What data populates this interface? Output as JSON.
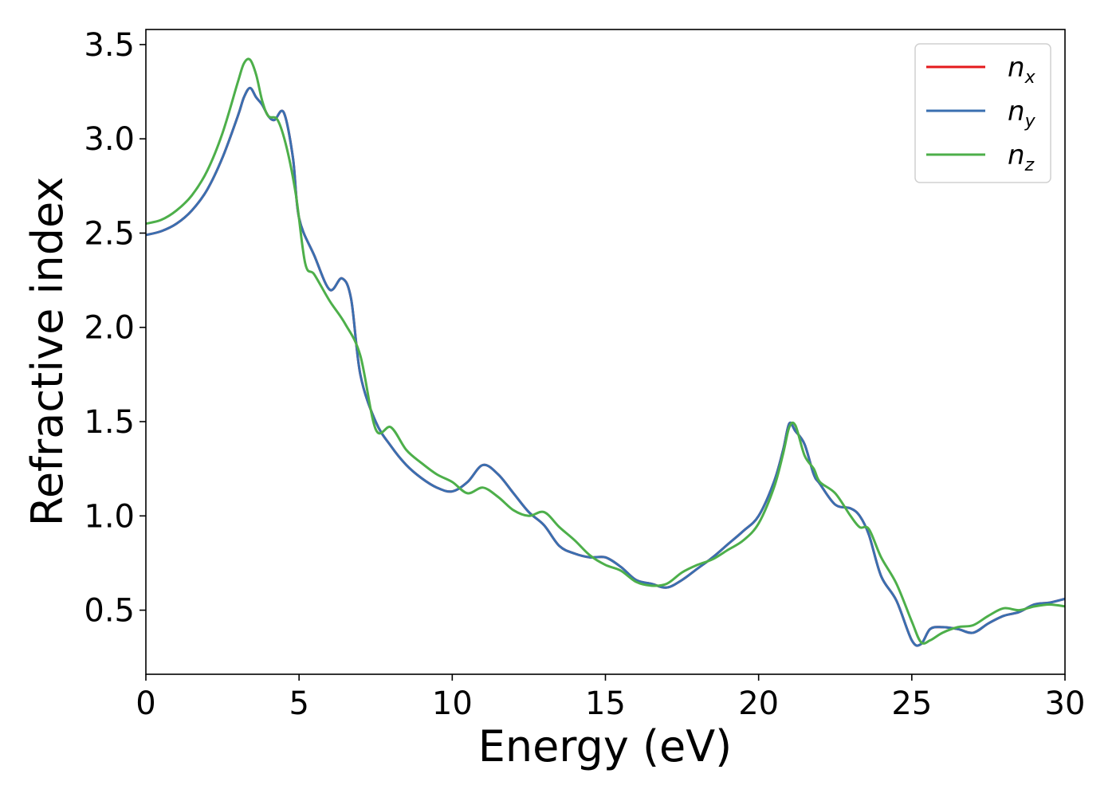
{
  "chart_data": {
    "type": "line",
    "xlabel": "Energy (eV)",
    "ylabel": "Refractive index",
    "xlim": [
      0,
      30
    ],
    "ylim": [
      0.16,
      3.58
    ],
    "xticks": [
      0,
      5,
      10,
      15,
      20,
      25,
      30
    ],
    "yticks": [
      0.5,
      1.0,
      1.5,
      2.0,
      2.5,
      3.0,
      3.5
    ],
    "xtick_labels": [
      "0",
      "5",
      "10",
      "15",
      "20",
      "25",
      "30"
    ],
    "ytick_labels": [
      "0.5",
      "1.0",
      "1.5",
      "2.0",
      "2.5",
      "3.0",
      "3.5"
    ],
    "grid": false,
    "legend_position": "top-right",
    "series": [
      {
        "name": "n_x",
        "label_base": "n",
        "label_sub": "x",
        "color": "#e41a1c",
        "x": [
          0,
          0.5,
          1,
          1.5,
          2,
          2.5,
          3,
          3.2,
          3.4,
          3.6,
          3.8,
          4.0,
          4.2,
          4.5,
          4.8,
          5.0,
          5.5,
          6.0,
          6.4,
          6.7,
          7.0,
          7.5,
          8.0,
          8.5,
          9.0,
          9.5,
          10.0,
          10.5,
          11.0,
          11.5,
          12.0,
          12.5,
          13.0,
          13.5,
          14.0,
          14.5,
          15.0,
          15.5,
          16.0,
          16.5,
          17.0,
          17.5,
          18.0,
          18.5,
          19.0,
          19.5,
          20.0,
          20.5,
          20.8,
          21.0,
          21.2,
          21.5,
          21.8,
          22.0,
          22.5,
          23.0,
          23.3,
          23.6,
          24.0,
          24.5,
          25.0,
          25.3,
          25.6,
          26.0,
          26.5,
          27.0,
          27.5,
          28.0,
          28.5,
          29.0,
          29.5,
          30.0
        ],
        "y": [
          2.49,
          2.51,
          2.55,
          2.62,
          2.73,
          2.9,
          3.12,
          3.22,
          3.27,
          3.22,
          3.18,
          3.12,
          3.1,
          3.14,
          2.9,
          2.58,
          2.38,
          2.2,
          2.26,
          2.15,
          1.75,
          1.5,
          1.37,
          1.27,
          1.2,
          1.15,
          1.13,
          1.18,
          1.27,
          1.22,
          1.12,
          1.02,
          0.95,
          0.84,
          0.8,
          0.78,
          0.78,
          0.73,
          0.66,
          0.64,
          0.62,
          0.66,
          0.72,
          0.78,
          0.85,
          0.92,
          1.0,
          1.18,
          1.35,
          1.49,
          1.45,
          1.38,
          1.22,
          1.17,
          1.06,
          1.04,
          1.0,
          0.9,
          0.68,
          0.55,
          0.34,
          0.32,
          0.4,
          0.41,
          0.4,
          0.38,
          0.43,
          0.47,
          0.49,
          0.53,
          0.54,
          0.56
        ]
      },
      {
        "name": "n_y",
        "label_base": "n",
        "label_sub": "y",
        "color": "#3a6fb0",
        "x": [
          0,
          0.5,
          1,
          1.5,
          2,
          2.5,
          3,
          3.2,
          3.4,
          3.6,
          3.8,
          4.0,
          4.2,
          4.5,
          4.8,
          5.0,
          5.5,
          6.0,
          6.4,
          6.7,
          7.0,
          7.5,
          8.0,
          8.5,
          9.0,
          9.5,
          10.0,
          10.5,
          11.0,
          11.5,
          12.0,
          12.5,
          13.0,
          13.5,
          14.0,
          14.5,
          15.0,
          15.5,
          16.0,
          16.5,
          17.0,
          17.5,
          18.0,
          18.5,
          19.0,
          19.5,
          20.0,
          20.5,
          20.8,
          21.0,
          21.2,
          21.5,
          21.8,
          22.0,
          22.5,
          23.0,
          23.3,
          23.6,
          24.0,
          24.5,
          25.0,
          25.3,
          25.6,
          26.0,
          26.5,
          27.0,
          27.5,
          28.0,
          28.5,
          29.0,
          29.5,
          30.0
        ],
        "y": [
          2.49,
          2.51,
          2.55,
          2.62,
          2.73,
          2.9,
          3.12,
          3.22,
          3.27,
          3.22,
          3.18,
          3.12,
          3.1,
          3.14,
          2.9,
          2.58,
          2.38,
          2.2,
          2.26,
          2.15,
          1.75,
          1.5,
          1.37,
          1.27,
          1.2,
          1.15,
          1.13,
          1.18,
          1.27,
          1.22,
          1.12,
          1.02,
          0.95,
          0.84,
          0.8,
          0.78,
          0.78,
          0.73,
          0.66,
          0.64,
          0.62,
          0.66,
          0.72,
          0.78,
          0.85,
          0.92,
          1.0,
          1.18,
          1.35,
          1.49,
          1.45,
          1.38,
          1.22,
          1.17,
          1.06,
          1.04,
          1.0,
          0.9,
          0.68,
          0.55,
          0.34,
          0.32,
          0.4,
          0.41,
          0.4,
          0.38,
          0.43,
          0.47,
          0.49,
          0.53,
          0.54,
          0.56
        ]
      },
      {
        "name": "n_z",
        "label_base": "n",
        "label_sub": "z",
        "color": "#4daf4a",
        "x": [
          0,
          0.5,
          1,
          1.5,
          2,
          2.5,
          3,
          3.2,
          3.4,
          3.6,
          3.8,
          4.0,
          4.3,
          4.6,
          4.9,
          5.2,
          5.5,
          6.0,
          6.5,
          7.0,
          7.5,
          8.0,
          8.5,
          9.0,
          9.5,
          10.0,
          10.5,
          11.0,
          11.5,
          12.0,
          12.5,
          13.0,
          13.5,
          14.0,
          14.5,
          15.0,
          15.5,
          16.0,
          16.5,
          17.0,
          17.5,
          18.0,
          18.5,
          19.0,
          19.5,
          20.0,
          20.5,
          20.8,
          21.0,
          21.2,
          21.5,
          21.8,
          22.0,
          22.5,
          23.0,
          23.3,
          23.6,
          24.0,
          24.5,
          25.0,
          25.3,
          25.6,
          26.0,
          26.5,
          27.0,
          27.5,
          28.0,
          28.5,
          29.0,
          29.5,
          30.0
        ],
        "y": [
          2.55,
          2.57,
          2.62,
          2.7,
          2.83,
          3.03,
          3.3,
          3.4,
          3.42,
          3.34,
          3.2,
          3.12,
          3.1,
          2.95,
          2.7,
          2.34,
          2.28,
          2.14,
          2.02,
          1.85,
          1.46,
          1.47,
          1.35,
          1.28,
          1.22,
          1.18,
          1.12,
          1.15,
          1.1,
          1.03,
          1.0,
          1.02,
          0.94,
          0.87,
          0.79,
          0.74,
          0.71,
          0.65,
          0.63,
          0.64,
          0.7,
          0.74,
          0.77,
          0.82,
          0.87,
          0.96,
          1.15,
          1.33,
          1.47,
          1.48,
          1.32,
          1.25,
          1.18,
          1.12,
          1.0,
          0.94,
          0.93,
          0.78,
          0.64,
          0.44,
          0.33,
          0.34,
          0.38,
          0.41,
          0.42,
          0.47,
          0.51,
          0.5,
          0.52,
          0.53,
          0.52
        ]
      }
    ]
  }
}
